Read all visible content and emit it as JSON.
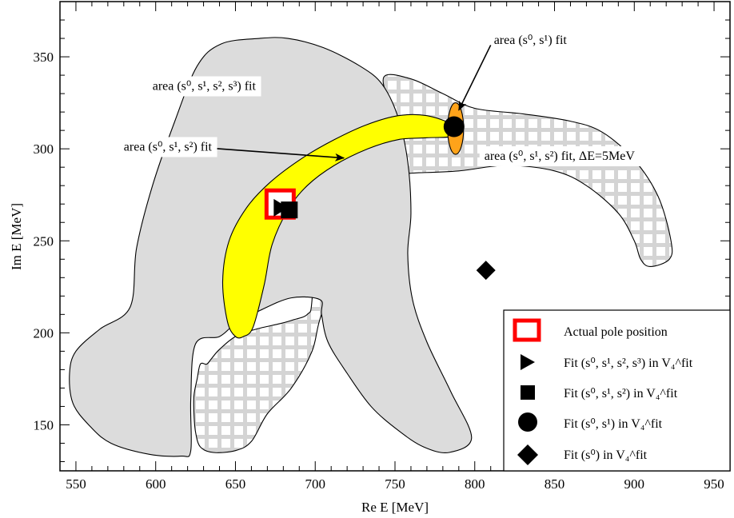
{
  "chart_data": {
    "type": "scatter",
    "xlabel": "Re E [MeV]",
    "ylabel": "Im E [MeV]",
    "xlim": [
      540,
      960
    ],
    "ylim": [
      125,
      380
    ],
    "xticks": [
      550,
      600,
      650,
      700,
      750,
      800,
      850,
      900,
      950
    ],
    "yticks": [
      150,
      200,
      250,
      300,
      350
    ],
    "grid": false,
    "legend_position": "bottom-right",
    "colors": {
      "gray_region": "#dcdcdc",
      "hatched_region": "#d4d4d4",
      "yellow_region": "#ffff00",
      "orange_region": "#ffa31a",
      "actual_pole": "#ff0000",
      "markers": "#000000"
    },
    "regions": [
      {
        "id": "s0-s1-s2-s3",
        "fill": "gray",
        "points": [
          [
            584,
            214
          ],
          [
            588,
            246
          ],
          [
            598,
            280
          ],
          [
            612,
            315
          ],
          [
            626,
            345
          ],
          [
            641,
            357
          ],
          [
            665,
            360
          ],
          [
            683,
            360
          ],
          [
            705,
            355
          ],
          [
            728,
            345
          ],
          [
            742,
            335
          ],
          [
            752,
            317
          ],
          [
            758,
            293
          ],
          [
            760,
            265
          ],
          [
            758,
            243
          ],
          [
            761,
            218
          ],
          [
            770,
            195
          ],
          [
            785,
            168
          ],
          [
            798,
            143
          ],
          [
            784,
            135
          ],
          [
            768,
            138
          ],
          [
            752,
            147
          ],
          [
            735,
            160
          ],
          [
            720,
            178
          ],
          [
            708,
            195
          ],
          [
            704,
            210
          ],
          [
            703,
            218
          ],
          [
            685,
            219
          ],
          [
            665,
            212
          ],
          [
            650,
            205
          ],
          [
            640,
            198
          ],
          [
            625,
            194
          ],
          [
            622,
            164
          ],
          [
            622,
            136
          ],
          [
            616,
            133
          ],
          [
            596,
            134
          ],
          [
            572,
            140
          ],
          [
            558,
            150
          ],
          [
            548,
            162
          ],
          [
            546,
            178
          ],
          [
            550,
            190
          ],
          [
            565,
            202
          ]
        ]
      },
      {
        "id": "s0-s1-s2-dE5",
        "fill": "hatched",
        "points": [
          [
            743,
            339
          ],
          [
            760,
            338
          ],
          [
            780,
            330
          ],
          [
            800,
            322
          ],
          [
            830,
            319
          ],
          [
            860,
            315
          ],
          [
            880,
            309
          ],
          [
            900,
            294
          ],
          [
            915,
            274
          ],
          [
            923,
            250
          ],
          [
            922,
            240
          ],
          [
            910,
            236
          ],
          [
            904,
            240
          ],
          [
            900,
            250
          ],
          [
            890,
            265
          ],
          [
            870,
            280
          ],
          [
            850,
            288
          ],
          [
            820,
            291
          ],
          [
            790,
            288
          ],
          [
            765,
            287
          ],
          [
            756,
            287
          ],
          [
            742,
            291
          ],
          [
            720,
            296
          ],
          [
            704,
            278
          ],
          [
            700,
            262
          ],
          [
            698,
            218
          ],
          [
            695,
            210
          ],
          [
            686,
            207
          ],
          [
            678,
            205
          ],
          [
            663,
            202
          ],
          [
            650,
            198
          ],
          [
            640,
            191
          ],
          [
            635,
            186
          ],
          [
            632,
            183
          ],
          [
            628,
            183
          ],
          [
            626,
            175
          ],
          [
            624,
            166
          ],
          [
            624,
            156
          ],
          [
            625,
            146
          ],
          [
            628,
            138
          ],
          [
            636,
            135
          ],
          [
            650,
            136
          ],
          [
            660,
            141
          ],
          [
            670,
            156
          ],
          [
            685,
            170
          ],
          [
            698,
            190
          ],
          [
            704,
            210
          ],
          [
            720,
            238
          ],
          [
            740,
            270
          ],
          [
            755,
            295
          ],
          [
            748,
            320
          ]
        ]
      },
      {
        "id": "s0-s1-s2",
        "fill": "yellow",
        "points": [
          [
            650,
            198
          ],
          [
            645,
            206
          ],
          [
            642,
            228
          ],
          [
            646,
            250
          ],
          [
            657,
            268
          ],
          [
            672,
            282
          ],
          [
            692,
            295
          ],
          [
            712,
            305
          ],
          [
            732,
            313
          ],
          [
            752,
            318
          ],
          [
            770,
            318
          ],
          [
            786,
            313
          ],
          [
            787,
            307
          ],
          [
            770,
            306
          ],
          [
            752,
            305
          ],
          [
            733,
            300
          ],
          [
            712,
            291
          ],
          [
            695,
            280
          ],
          [
            683,
            267
          ],
          [
            673,
            248
          ],
          [
            668,
            226
          ],
          [
            661,
            203
          ],
          [
            655,
            198
          ]
        ]
      },
      {
        "id": "s0-s1",
        "fill": "orange",
        "center": [
          788,
          311
        ],
        "radius": [
          5,
          14
        ]
      }
    ],
    "markers": [
      {
        "shape": "square-open",
        "x": 678,
        "y": 270,
        "label": "Actual pole position"
      },
      {
        "shape": "triangle-right",
        "x": 678,
        "y": 268,
        "label": "Fit (s0, s1, s2, s3) in V4 fit"
      },
      {
        "shape": "square",
        "x": 684,
        "y": 267,
        "label": "Fit (s0, s1, s2) in V4 fit"
      },
      {
        "shape": "circle",
        "x": 787,
        "y": 312,
        "label": "Fit (s0, s1) in V4 fit"
      },
      {
        "shape": "diamond",
        "x": 807,
        "y": 234,
        "label": "Fit (s0) in V4 fit"
      }
    ],
    "annotations": [
      {
        "id": "ann-s3",
        "text": "area (s⁰, s¹, s², s³) fit",
        "x": 598,
        "y": 332,
        "arrow_to": null
      },
      {
        "id": "ann-s2",
        "text": "area (s⁰, s¹, s²) fit",
        "x": 580,
        "y": 299,
        "arrow_to": [
          718,
          295
        ]
      },
      {
        "id": "ann-s1",
        "text": "area (s⁰, s¹) fit",
        "x": 812,
        "y": 357,
        "arrow_to": [
          790,
          321
        ]
      },
      {
        "id": "ann-de",
        "text": "area (s⁰, s¹, s²) fit, ΔE=5MeV",
        "x": 806,
        "y": 294,
        "arrow_to": null
      }
    ],
    "legend": [
      {
        "shape": "square-open",
        "text": "Actual pole position"
      },
      {
        "shape": "triangle-right",
        "text": "Fit (s⁰, s¹, s², s³) in V₄^fit"
      },
      {
        "shape": "square",
        "text": "Fit (s⁰, s¹, s²) in V₄^fit"
      },
      {
        "shape": "circle",
        "text": "Fit (s⁰, s¹) in V₄^fit"
      },
      {
        "shape": "diamond",
        "text": "Fit (s⁰) in V₄^fit"
      }
    ]
  }
}
